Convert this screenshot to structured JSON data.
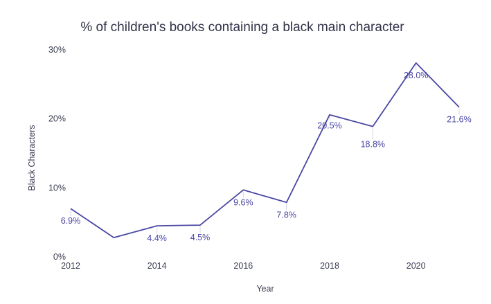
{
  "chart_data": {
    "type": "line",
    "title": "% of children's books containing a black main character",
    "xlabel": "Year",
    "ylabel": "Black Characters",
    "x": [
      2012,
      2013,
      2014,
      2015,
      2016,
      2017,
      2018,
      2019,
      2020,
      2021
    ],
    "series": [
      {
        "name": "Black Characters",
        "values": [
          6.9,
          2.7,
          4.4,
          4.5,
          9.6,
          7.8,
          20.5,
          18.8,
          28.0,
          21.6
        ],
        "labels": [
          "6.9%",
          "",
          "4.4%",
          "4.5%",
          "9.6%",
          "7.8%",
          "20.5%",
          "18.8%",
          "28.0%",
          "21.6%"
        ],
        "color": "#4a47a3"
      }
    ],
    "xticks": [
      "2012",
      "2014",
      "2016",
      "2018",
      "2020"
    ],
    "yticks": [
      "0%",
      "10%",
      "20%",
      "30%"
    ],
    "xlim": [
      2012,
      2021
    ],
    "ylim": [
      0,
      30
    ],
    "grid": false,
    "legend": "none"
  }
}
